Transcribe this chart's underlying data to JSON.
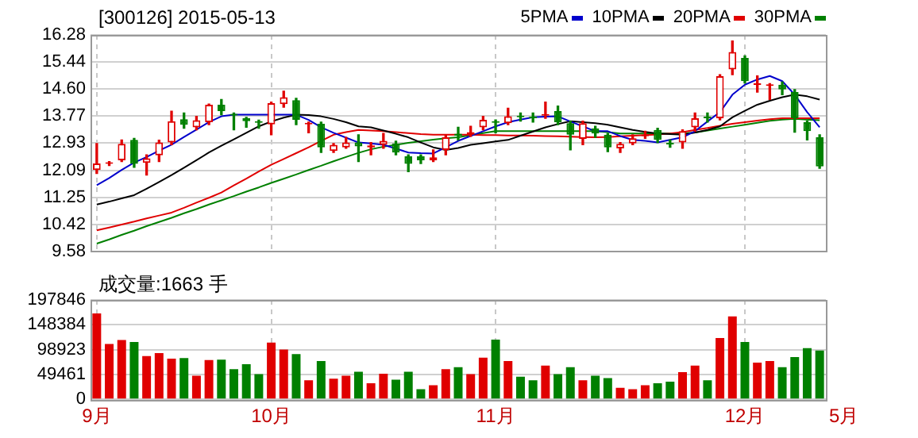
{
  "chart_data": [
    {
      "type": "candlestick",
      "title": "[300126] 2015-05-13",
      "categories": [
        null,
        null,
        null,
        null,
        null,
        null,
        null,
        null,
        null,
        null,
        null,
        null,
        null,
        null,
        null,
        null,
        null,
        null,
        null,
        null,
        null,
        null,
        null,
        null,
        null,
        null,
        null,
        null,
        null,
        null,
        null,
        null,
        null,
        null,
        null,
        null,
        null,
        null,
        null,
        null,
        null,
        null,
        null,
        null,
        null,
        null,
        null,
        null,
        null,
        null,
        null,
        null,
        null,
        null,
        null,
        null,
        null,
        null,
        null
      ],
      "ohlc": [
        [
          12.1,
          12.92,
          11.99,
          12.3
        ],
        [
          12.29,
          12.36,
          12.24,
          12.33
        ],
        [
          12.4,
          13.03,
          12.36,
          12.91
        ],
        [
          13.03,
          13.08,
          12.18,
          12.29
        ],
        [
          12.32,
          12.57,
          11.94,
          12.46
        ],
        [
          12.55,
          13.02,
          12.36,
          12.95
        ],
        [
          12.95,
          13.92,
          12.88,
          13.61
        ],
        [
          13.67,
          13.86,
          13.39,
          13.5
        ],
        [
          13.42,
          13.76,
          13.34,
          13.64
        ],
        [
          13.58,
          14.14,
          13.5,
          14.12
        ],
        [
          14.12,
          14.28,
          13.81,
          13.92
        ],
        [
          13.82,
          13.86,
          13.34,
          13.79
        ],
        [
          13.7,
          13.73,
          13.42,
          13.61
        ],
        [
          13.61,
          13.64,
          13.39,
          13.56
        ],
        [
          13.51,
          14.2,
          13.19,
          14.17
        ],
        [
          14.14,
          14.54,
          14.04,
          14.35
        ],
        [
          14.26,
          14.32,
          13.5,
          13.65
        ],
        [
          13.51,
          13.58,
          13.25,
          13.55
        ],
        [
          13.53,
          13.58,
          12.64,
          12.8
        ],
        [
          12.69,
          12.92,
          12.64,
          12.88
        ],
        [
          12.8,
          13.11,
          12.77,
          12.95
        ],
        [
          12.95,
          13.19,
          12.36,
          12.83
        ],
        [
          12.8,
          12.95,
          12.57,
          12.86
        ],
        [
          12.88,
          13.23,
          12.77,
          13.0
        ],
        [
          12.92,
          12.99,
          12.57,
          12.64
        ],
        [
          12.52,
          12.57,
          12.05,
          12.29
        ],
        [
          12.52,
          12.57,
          12.3,
          12.4
        ],
        [
          12.4,
          12.72,
          12.36,
          12.49
        ],
        [
          12.72,
          13.19,
          12.57,
          13.11
        ],
        [
          13.22,
          13.42,
          13.03,
          13.16
        ],
        [
          13.19,
          13.45,
          13.14,
          13.27
        ],
        [
          13.42,
          13.76,
          13.34,
          13.65
        ],
        [
          13.61,
          13.65,
          13.25,
          13.56
        ],
        [
          13.55,
          14.01,
          13.5,
          13.76
        ],
        [
          13.78,
          13.86,
          13.61,
          13.73
        ],
        [
          13.75,
          13.86,
          13.58,
          13.7
        ],
        [
          13.78,
          14.2,
          13.7,
          13.82
        ],
        [
          13.92,
          14.08,
          13.5,
          13.58
        ],
        [
          13.55,
          13.61,
          12.72,
          13.19
        ],
        [
          13.06,
          13.61,
          12.88,
          13.55
        ],
        [
          13.39,
          13.45,
          13.11,
          13.23
        ],
        [
          13.19,
          13.23,
          12.67,
          12.8
        ],
        [
          12.77,
          12.95,
          12.64,
          12.91
        ],
        [
          12.92,
          13.19,
          12.88,
          13.08
        ],
        [
          13.14,
          13.3,
          13.08,
          13.2
        ],
        [
          13.34,
          13.39,
          12.95,
          13.03
        ],
        [
          12.92,
          13.03,
          12.8,
          12.89
        ],
        [
          12.95,
          13.34,
          12.77,
          13.3
        ],
        [
          13.42,
          13.86,
          13.3,
          13.7
        ],
        [
          13.75,
          13.86,
          13.58,
          13.7
        ],
        [
          13.7,
          15.05,
          13.65,
          15.0
        ],
        [
          15.21,
          16.09,
          15.05,
          15.75
        ],
        [
          15.57,
          15.63,
          14.79,
          14.85
        ],
        [
          14.73,
          15.01,
          14.51,
          14.76
        ],
        [
          14.7,
          14.77,
          14.28,
          14.73
        ],
        [
          14.74,
          14.82,
          14.43,
          14.59
        ],
        [
          14.51,
          14.59,
          13.27,
          13.7
        ],
        [
          13.58,
          13.61,
          13.03,
          13.3
        ],
        [
          13.11,
          13.19,
          12.15,
          12.21
        ]
      ],
      "colors": [
        "#e00000",
        "#e00000",
        "#e00000",
        "#008000",
        "#e00000",
        "#e00000",
        "#e00000",
        "#008000",
        "#e00000",
        "#e00000",
        "#008000",
        "#008000",
        "#008000",
        "#008000",
        "#e00000",
        "#e00000",
        "#008000",
        "#e00000",
        "#008000",
        "#e00000",
        "#e00000",
        "#008000",
        "#e00000",
        "#e00000",
        "#008000",
        "#008000",
        "#008000",
        "#e00000",
        "#e00000",
        "#008000",
        "#e00000",
        "#e00000",
        "#008000",
        "#e00000",
        "#008000",
        "#008000",
        "#e00000",
        "#008000",
        "#008000",
        "#e00000",
        "#008000",
        "#008000",
        "#e00000",
        "#e00000",
        "#e00000",
        "#008000",
        "#008000",
        "#e00000",
        "#e00000",
        "#008000",
        "#e00000",
        "#e00000",
        "#008000",
        "#e00000",
        "#e00000",
        "#008000",
        "#008000",
        "#008000",
        "#008000"
      ],
      "series": [
        {
          "type": "line",
          "name": "5PMA",
          "color": "#0000cc",
          "values": [
            11.63,
            11.85,
            12.1,
            12.33,
            12.5,
            12.7,
            12.88,
            13.12,
            13.35,
            13.58,
            13.76,
            13.81,
            13.81,
            13.81,
            13.81,
            13.81,
            13.81,
            13.65,
            13.42,
            13.25,
            13.1,
            12.95,
            12.92,
            12.88,
            12.76,
            12.64,
            12.62,
            12.61,
            12.8,
            13.0,
            13.15,
            13.3,
            13.45,
            13.58,
            13.66,
            13.73,
            13.75,
            13.76,
            13.6,
            13.45,
            13.3,
            13.3,
            13.15,
            13.03,
            13.0,
            12.95,
            13.03,
            13.11,
            13.3,
            13.6,
            13.89,
            14.43,
            14.74,
            14.9,
            15.01,
            14.85,
            14.43,
            13.89,
            13.42
          ]
        },
        {
          "type": "line",
          "name": "10PMA",
          "color": "#000000",
          "values": [
            11.03,
            11.12,
            11.22,
            11.32,
            11.52,
            11.73,
            11.94,
            12.17,
            12.4,
            12.64,
            12.85,
            13.05,
            13.25,
            13.45,
            13.6,
            13.72,
            13.81,
            13.8,
            13.76,
            13.68,
            13.58,
            13.45,
            13.42,
            13.32,
            13.22,
            13.11,
            12.95,
            12.8,
            12.72,
            12.78,
            12.88,
            12.93,
            12.98,
            13.03,
            13.16,
            13.29,
            13.42,
            13.52,
            13.61,
            13.58,
            13.55,
            13.5,
            13.42,
            13.34,
            13.28,
            13.23,
            13.21,
            13.19,
            13.26,
            13.34,
            13.45,
            13.73,
            13.93,
            14.12,
            14.24,
            14.35,
            14.43,
            14.38,
            14.28
          ]
        },
        {
          "type": "line",
          "name": "20PMA",
          "color": "#e00000",
          "values": [
            10.23,
            10.32,
            10.41,
            10.5,
            10.6,
            10.69,
            10.78,
            10.93,
            11.09,
            11.24,
            11.4,
            11.62,
            11.83,
            12.05,
            12.26,
            12.44,
            12.62,
            12.8,
            13.0,
            13.19,
            13.27,
            13.34,
            13.32,
            13.3,
            13.27,
            13.24,
            13.21,
            13.19,
            13.19,
            13.19,
            13.19,
            13.18,
            13.18,
            13.17,
            13.17,
            13.16,
            13.15,
            13.14,
            13.13,
            13.12,
            13.11,
            13.12,
            13.14,
            13.16,
            13.18,
            13.2,
            13.23,
            13.27,
            13.34,
            13.4,
            13.47,
            13.53,
            13.58,
            13.63,
            13.67,
            13.7,
            13.7,
            13.7,
            13.7
          ]
        },
        {
          "type": "line",
          "name": "30PMA",
          "color": "#008000",
          "values": [
            9.82,
            9.95,
            10.09,
            10.22,
            10.36,
            10.49,
            10.62,
            10.76,
            10.89,
            11.03,
            11.16,
            11.29,
            11.43,
            11.56,
            11.7,
            11.83,
            11.96,
            12.1,
            12.23,
            12.37,
            12.5,
            12.63,
            12.74,
            12.82,
            12.88,
            12.94,
            12.99,
            13.04,
            13.08,
            13.11,
            13.18,
            13.24,
            13.3,
            13.3,
            13.3,
            13.3,
            13.3,
            13.3,
            13.3,
            13.3,
            13.3,
            13.27,
            13.23,
            13.23,
            13.23,
            13.23,
            13.23,
            13.23,
            13.26,
            13.32,
            13.38,
            13.44,
            13.5,
            13.56,
            13.62,
            13.66,
            13.68,
            13.66,
            13.64
          ]
        }
      ],
      "ylim": [
        9.58,
        16.28
      ],
      "yticks": [
        9.58,
        10.42,
        11.25,
        12.09,
        12.93,
        13.77,
        {
          "value": 14.6,
          "label": "14.60"
        },
        15.44,
        16.28
      ],
      "grid": true,
      "legend": "top right",
      "marker": "none",
      "tick_labels": "y"
    },
    {
      "type": "bar",
      "title": "成交量:1663 手",
      "categories": [
        "9月",
        null,
        null,
        null,
        null,
        null,
        null,
        null,
        null,
        null,
        null,
        null,
        null,
        null,
        "10月",
        null,
        null,
        null,
        null,
        null,
        null,
        null,
        null,
        null,
        null,
        null,
        null,
        null,
        null,
        null,
        null,
        null,
        "11月",
        null,
        null,
        null,
        null,
        null,
        null,
        null,
        null,
        null,
        null,
        null,
        null,
        null,
        null,
        null,
        null,
        null,
        null,
        null,
        "12月",
        null,
        null,
        null,
        null,
        null,
        null
      ],
      "values": [
        171000,
        110000,
        118000,
        114000,
        86000,
        92000,
        81000,
        82000,
        47000,
        78000,
        79000,
        60000,
        70000,
        50000,
        113000,
        99000,
        90000,
        38000,
        76000,
        41000,
        47000,
        55000,
        32000,
        51000,
        39000,
        55000,
        20000,
        28000,
        60000,
        64000,
        50000,
        83000,
        119000,
        76000,
        45000,
        38000,
        67000,
        50000,
        64000,
        38000,
        47000,
        42000,
        23000,
        20000,
        28000,
        32000,
        35000,
        54000,
        67000,
        38000,
        122000,
        165000,
        114000,
        73000,
        76000,
        64000,
        84000,
        102000,
        97000
      ],
      "colors": [
        "#e00000",
        "#e00000",
        "#e00000",
        "#008000",
        "#e00000",
        "#e00000",
        "#e00000",
        "#008000",
        "#e00000",
        "#e00000",
        "#008000",
        "#008000",
        "#008000",
        "#008000",
        "#e00000",
        "#e00000",
        "#008000",
        "#e00000",
        "#008000",
        "#e00000",
        "#e00000",
        "#008000",
        "#e00000",
        "#e00000",
        "#008000",
        "#008000",
        "#008000",
        "#e00000",
        "#e00000",
        "#008000",
        "#e00000",
        "#e00000",
        "#008000",
        "#e00000",
        "#008000",
        "#008000",
        "#e00000",
        "#008000",
        "#008000",
        "#e00000",
        "#008000",
        "#008000",
        "#e00000",
        "#e00000",
        "#e00000",
        "#008000",
        "#008000",
        "#e00000",
        "#e00000",
        "#008000",
        "#e00000",
        "#e00000",
        "#008000",
        "#e00000",
        "#e00000",
        "#008000",
        "#008000",
        "#008000",
        "#008000"
      ],
      "ylim": [
        0,
        197846
      ],
      "yticks": [
        0,
        49461,
        98923,
        148384,
        197846
      ],
      "grid": true,
      "annotations": [
        "5月"
      ]
    }
  ]
}
